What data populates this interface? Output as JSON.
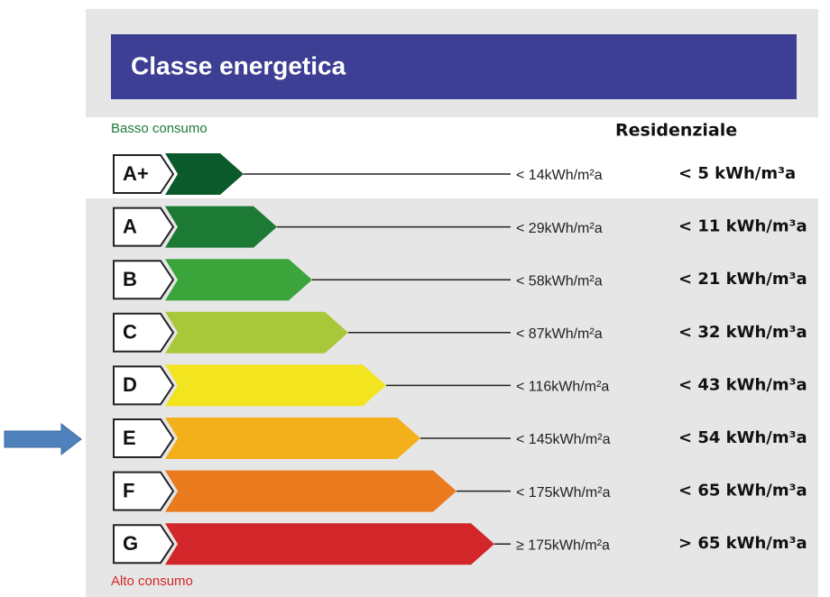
{
  "title": "Classe energetica",
  "low_label": "Basso consumo",
  "high_label": "Alto consumo",
  "column_title": "Residenziale",
  "classes": [
    {
      "letter": "A+",
      "threshold": "< 14kWh/m²a",
      "residential": "< 5 kWh/m³a"
    },
    {
      "letter": "A",
      "threshold": "< 29kWh/m²a",
      "residential": "< 11 kWh/m³a"
    },
    {
      "letter": "B",
      "threshold": "< 58kWh/m²a",
      "residential": "< 21 kWh/m³a"
    },
    {
      "letter": "C",
      "threshold": "< 87kWh/m²a",
      "residential": "< 32 kWh/m³a"
    },
    {
      "letter": "D",
      "threshold": "< 116kWh/m²a",
      "residential": "< 43 kWh/m³a"
    },
    {
      "letter": "E",
      "threshold": "< 145kWh/m²a",
      "residential": "< 54 kWh/m³a"
    },
    {
      "letter": "F",
      "threshold": "< 175kWh/m²a",
      "residential": "< 65 kWh/m³a"
    },
    {
      "letter": "G",
      "threshold": "≥ 175kWh/m²a",
      "residential": "> 65 kWh/m³a"
    }
  ]
}
